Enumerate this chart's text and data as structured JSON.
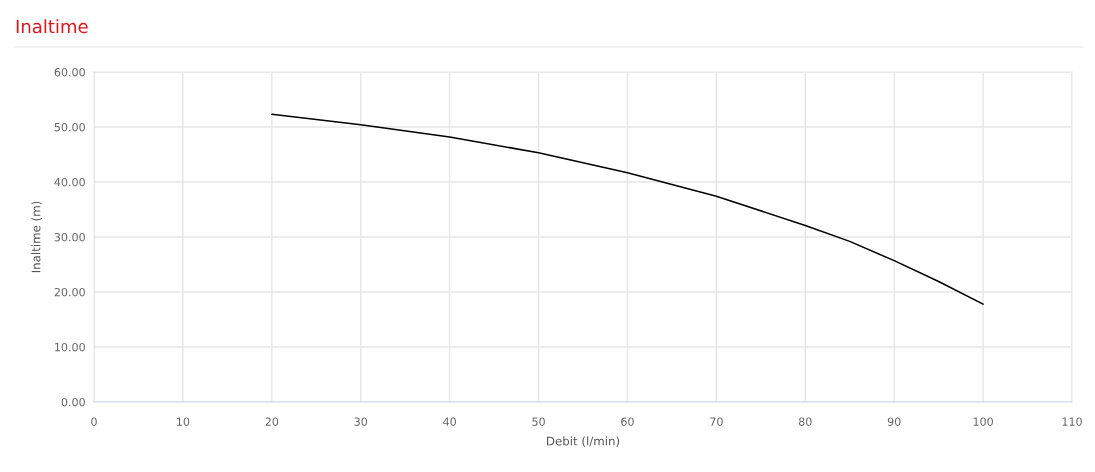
{
  "chart_data": {
    "type": "line",
    "title": "Inaltime",
    "xlabel": "Debit (l/min)",
    "ylabel": "Inaltime (m)",
    "x": [
      20,
      30,
      40,
      50,
      60,
      70,
      80,
      85,
      90,
      95,
      100
    ],
    "series": [
      {
        "color": "#000000",
        "values": [
          52.3,
          50.4,
          48.2,
          45.3,
          41.7,
          37.4,
          32.1,
          29.2,
          25.7,
          21.9,
          17.8
        ]
      }
    ],
    "xlim": [
      0,
      110
    ],
    "xticks": [
      0,
      10,
      20,
      30,
      40,
      50,
      60,
      70,
      80,
      90,
      100,
      110
    ],
    "ylim": [
      0,
      60
    ],
    "yticks": [
      {
        "value": 0,
        "label": "0.00"
      },
      {
        "value": 10,
        "label": "10.00"
      },
      {
        "value": 20,
        "label": "20.00"
      },
      {
        "value": 30,
        "label": "30.00"
      },
      {
        "value": 40,
        "label": "40.00"
      },
      {
        "value": 50,
        "label": "50.00"
      },
      {
        "value": 60,
        "label": "60.00"
      }
    ],
    "grid": true,
    "marker": "none",
    "line_style": "solid"
  }
}
